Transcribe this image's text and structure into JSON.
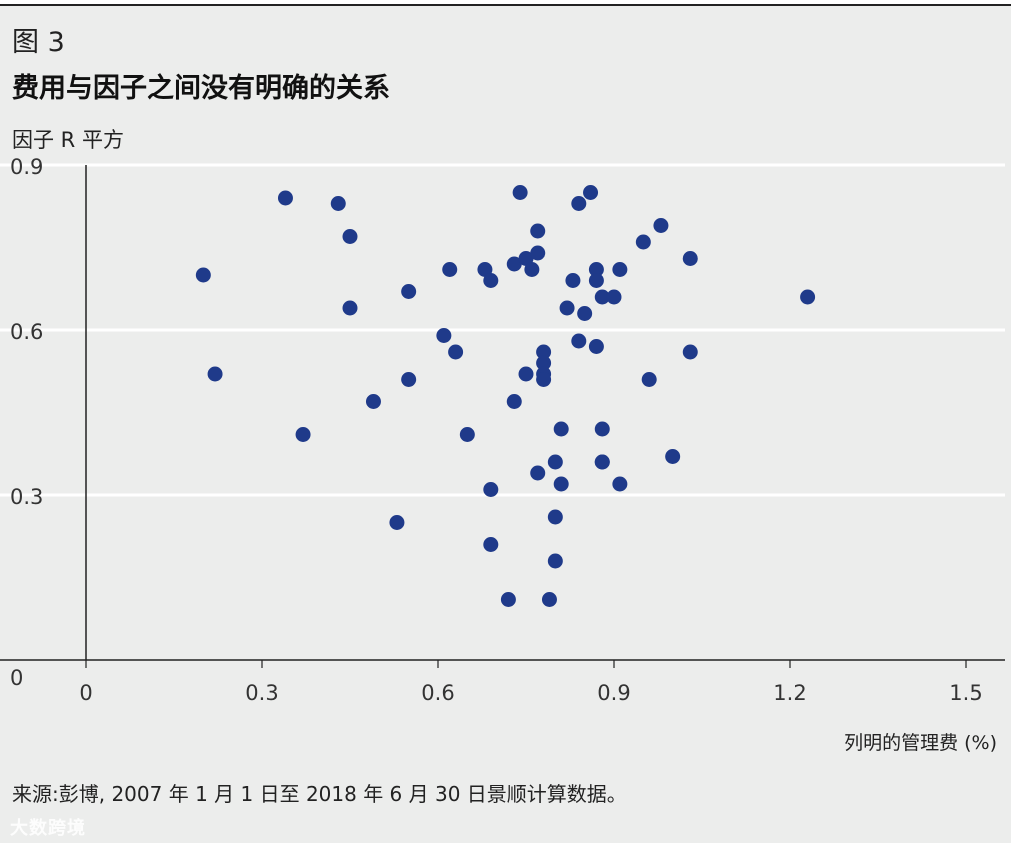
{
  "figure": {
    "label": "图 3",
    "title": "费用与因子之间没有明确的关系",
    "source": "来源:彭博, 2007 年 1 月 1 日至 2018 年 6 月 30 日景顺计算数据。",
    "watermark": "大数跨境"
  },
  "colors": {
    "background": "#ecedec",
    "marker": "#1f3a8a",
    "gridline": "#ffffff",
    "axis": "#222222"
  },
  "chart_data": {
    "type": "scatter",
    "title": "费用与因子之间没有明确的关系",
    "xlabel": "列明的管理费 (%)",
    "ylabel": "因子 R 平方",
    "xlim": [
      0,
      1.5
    ],
    "ylim": [
      0,
      0.9
    ],
    "xticks": [
      "0",
      "0.3",
      "0.6",
      "0.9",
      "1.2",
      "1.5"
    ],
    "yticks": [
      "0",
      "0.3",
      "0.6",
      "0.9"
    ],
    "grid": "horizontal",
    "series": [
      {
        "points": [
          [
            0.2,
            0.7
          ],
          [
            0.22,
            0.52
          ],
          [
            0.34,
            0.84
          ],
          [
            0.37,
            0.41
          ],
          [
            0.43,
            0.83
          ],
          [
            0.45,
            0.77
          ],
          [
            0.45,
            0.64
          ],
          [
            0.49,
            0.47
          ],
          [
            0.53,
            0.25
          ],
          [
            0.55,
            0.67
          ],
          [
            0.55,
            0.51
          ],
          [
            0.61,
            0.59
          ],
          [
            0.62,
            0.71
          ],
          [
            0.63,
            0.56
          ],
          [
            0.65,
            0.41
          ],
          [
            0.68,
            0.71
          ],
          [
            0.69,
            0.69
          ],
          [
            0.69,
            0.31
          ],
          [
            0.69,
            0.21
          ],
          [
            0.72,
            0.11
          ],
          [
            0.73,
            0.72
          ],
          [
            0.73,
            0.47
          ],
          [
            0.74,
            0.85
          ],
          [
            0.75,
            0.73
          ],
          [
            0.75,
            0.52
          ],
          [
            0.76,
            0.71
          ],
          [
            0.77,
            0.78
          ],
          [
            0.77,
            0.74
          ],
          [
            0.77,
            0.34
          ],
          [
            0.78,
            0.56
          ],
          [
            0.78,
            0.54
          ],
          [
            0.78,
            0.52
          ],
          [
            0.78,
            0.51
          ],
          [
            0.79,
            0.11
          ],
          [
            0.8,
            0.36
          ],
          [
            0.8,
            0.26
          ],
          [
            0.8,
            0.18
          ],
          [
            0.81,
            0.42
          ],
          [
            0.81,
            0.32
          ],
          [
            0.82,
            0.64
          ],
          [
            0.83,
            0.69
          ],
          [
            0.84,
            0.83
          ],
          [
            0.84,
            0.58
          ],
          [
            0.85,
            0.63
          ],
          [
            0.86,
            0.85
          ],
          [
            0.87,
            0.71
          ],
          [
            0.87,
            0.69
          ],
          [
            0.87,
            0.57
          ],
          [
            0.88,
            0.66
          ],
          [
            0.88,
            0.42
          ],
          [
            0.88,
            0.36
          ],
          [
            0.88,
            0.36
          ],
          [
            0.9,
            0.66
          ],
          [
            0.91,
            0.71
          ],
          [
            0.91,
            0.32
          ],
          [
            0.95,
            0.76
          ],
          [
            0.96,
            0.51
          ],
          [
            0.98,
            0.79
          ],
          [
            1.0,
            0.37
          ],
          [
            1.03,
            0.73
          ],
          [
            1.03,
            0.56
          ],
          [
            1.23,
            0.66
          ]
        ]
      }
    ]
  }
}
